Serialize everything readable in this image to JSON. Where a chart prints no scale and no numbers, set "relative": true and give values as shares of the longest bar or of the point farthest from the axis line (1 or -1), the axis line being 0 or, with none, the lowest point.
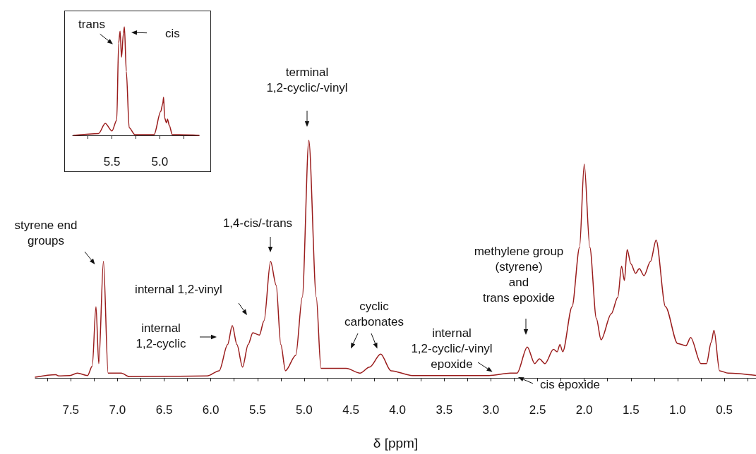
{
  "chart_data": [
    {
      "type": "line",
      "xlabel": "δ [ppm]",
      "relative": true,
      "xlim": [
        7.88,
        0.16
      ],
      "xticks": [
        {
          "value": 7.75,
          "label": null
        },
        7.5,
        {
          "value": 7.25,
          "label": null
        },
        {
          "value": 7,
          "label": "7.0"
        },
        {
          "value": 6.75,
          "label": null
        },
        6.5,
        {
          "value": 6.25,
          "label": null
        },
        {
          "value": 6,
          "label": "6.0"
        },
        {
          "value": 5.75,
          "label": null
        },
        5.5,
        {
          "value": 5.25,
          "label": null
        },
        {
          "value": 5,
          "label": "5.0"
        },
        {
          "value": 4.75,
          "label": null
        },
        4.5,
        {
          "value": 4.25,
          "label": null
        },
        {
          "value": 4,
          "label": "4.0"
        },
        {
          "value": 3.75,
          "label": null
        },
        3.5,
        {
          "value": 3.25,
          "label": null
        },
        {
          "value": 3,
          "label": "3.0"
        },
        {
          "value": 2.75,
          "label": null
        },
        2.5,
        {
          "value": 2.25,
          "label": null
        },
        {
          "value": 2,
          "label": "2.0"
        },
        {
          "value": 1.75,
          "label": null
        },
        1.5,
        {
          "value": 1.25,
          "label": null
        },
        {
          "value": 1,
          "label": "1.0"
        },
        {
          "value": 0.75,
          "label": null
        },
        0.5,
        {
          "value": 0.25,
          "label": null
        }
      ],
      "series": [
        {
          "color": "#9a1c1c",
          "x": [
            7.88,
            7.66,
            7.63,
            7.51,
            7.43,
            7.32,
            7.27,
            7.23,
            7.2,
            7.15,
            7.1,
            6.96,
            6.87,
            6.04,
            5.91,
            5.82,
            5.77,
            5.72,
            5.66,
            5.6,
            5.55,
            5.48,
            5.43,
            5.36,
            5.3,
            5.25,
            5.2,
            5.09,
            5.02,
            4.95,
            4.87,
            4.82,
            4.55,
            4.4,
            4.3,
            4.18,
            4.07,
            3.84,
            3.02,
            2.79,
            2.72,
            2.61,
            2.53,
            2.48,
            2.42,
            2.33,
            2.29,
            2.26,
            2.23,
            2.13,
            2.05,
            2,
            1.94,
            1.87,
            1.82,
            1.71,
            1.64,
            1.6,
            1.57,
            1.54,
            1.5,
            1.45,
            1.41,
            1.36,
            1.29,
            1.23,
            1.13,
            1,
            0.91,
            0.86,
            0.75,
            0.69,
            0.64,
            0.61,
            0.55,
            0.46,
            0.16
          ],
          "values": [
            0.003,
            0.013,
            0.008,
            0.01,
            0.02,
            0.01,
            0.05,
            0.3,
            0.06,
            0.49,
            0.02,
            0.02,
            0.005,
            0.008,
            0.03,
            0.14,
            0.22,
            0.14,
            0.045,
            0.14,
            0.19,
            0.18,
            0.24,
            0.49,
            0.39,
            0.14,
            0.03,
            0.095,
            0.34,
            1,
            0.34,
            0.04,
            0.04,
            0.02,
            0.045,
            0.1,
            0.03,
            0.01,
            0.01,
            0.02,
            0.02,
            0.13,
            0.06,
            0.08,
            0.06,
            0.12,
            0.11,
            0.14,
            0.11,
            0.3,
            0.55,
            0.9,
            0.55,
            0.25,
            0.16,
            0.27,
            0.34,
            0.47,
            0.41,
            0.54,
            0.48,
            0.44,
            0.46,
            0.43,
            0.49,
            0.58,
            0.3,
            0.145,
            0.135,
            0.17,
            0.06,
            0.06,
            0.15,
            0.2,
            0.03,
            0.02,
            0.01
          ]
        }
      ],
      "annotations": [
        "styrene end\ngroups",
        "internal 1,2-vinyl",
        "internal\n1,2-cyclic",
        "1,4-cis/-trans",
        "terminal\n1,2-cyclic/-vinyl",
        "cyclic\ncarbonates",
        "internal\n1,2-cyclic/-vinyl\nepoxide",
        "methylene group\n(styrene)\nand\ntrans epoxide",
        "cis epoxide"
      ]
    },
    {
      "type": "line",
      "relative": true,
      "xlim": [
        5.91,
        4.59
      ],
      "xticks": [
        {
          "value": 5.75,
          "label": null
        },
        5.5,
        {
          "value": 5.25,
          "label": null
        },
        {
          "value": 5,
          "label": "5.0"
        },
        {
          "value": 4.75,
          "label": null
        }
      ],
      "series": [
        {
          "color": "#9a1c1c",
          "x": [
            5.9,
            5.64,
            5.57,
            5.5,
            5.45,
            5.43,
            5.415,
            5.4,
            5.38,
            5.37,
            5.35,
            5.32,
            5.26,
            5.06,
            4.99,
            4.97,
            4.96,
            4.95,
            4.93,
            4.92,
            4.9,
            4.87,
            4.59
          ],
          "values": [
            0,
            0.017,
            0.11,
            0.04,
            0.14,
            0.85,
            0.96,
            0.72,
            0.94,
            1,
            0.59,
            0.07,
            0.007,
            0.007,
            0.22,
            0.29,
            0.35,
            0.16,
            0.115,
            0.15,
            0.09,
            0.007,
            0
          ]
        }
      ],
      "annotations": [
        "trans",
        "cis"
      ]
    }
  ]
}
